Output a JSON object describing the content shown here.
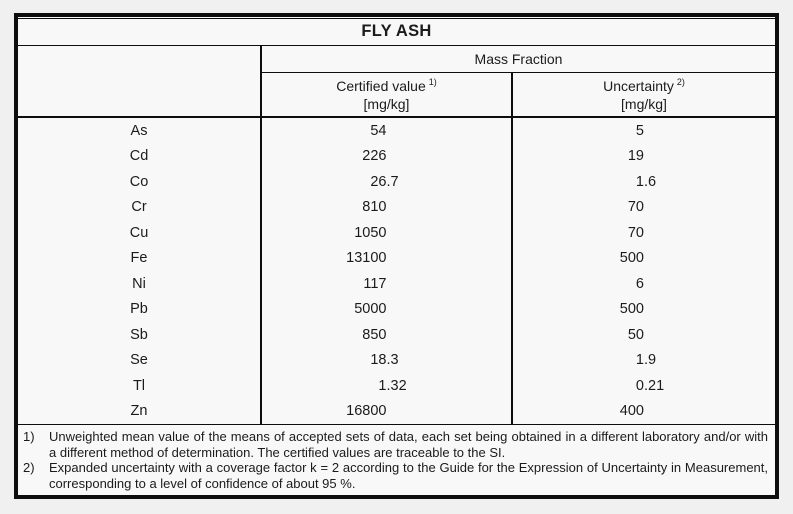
{
  "title": "FLY ASH",
  "columns": {
    "group_label": "Mass Fraction",
    "certified": {
      "label": "Certified value",
      "sup": "1)",
      "unit": "[mg/kg]"
    },
    "uncertainty": {
      "label": "Uncertainty",
      "sup": "2)",
      "unit": "[mg/kg]"
    }
  },
  "rows": [
    {
      "element": "As",
      "certified": {
        "int": "54",
        "frac": ""
      },
      "uncertainty": {
        "int": "5",
        "frac": ""
      }
    },
    {
      "element": "Cd",
      "certified": {
        "int": "226",
        "frac": ""
      },
      "uncertainty": {
        "int": "19",
        "frac": ""
      }
    },
    {
      "element": "Co",
      "certified": {
        "int": "26",
        "frac": ".7"
      },
      "uncertainty": {
        "int": "1",
        "frac": ".6"
      }
    },
    {
      "element": "Cr",
      "certified": {
        "int": "810",
        "frac": ""
      },
      "uncertainty": {
        "int": "70",
        "frac": ""
      }
    },
    {
      "element": "Cu",
      "certified": {
        "int": "1050",
        "frac": ""
      },
      "uncertainty": {
        "int": "70",
        "frac": ""
      }
    },
    {
      "element": "Fe",
      "certified": {
        "int": "13100",
        "frac": ""
      },
      "uncertainty": {
        "int": "500",
        "frac": ""
      }
    },
    {
      "element": "Ni",
      "certified": {
        "int": "117",
        "frac": ""
      },
      "uncertainty": {
        "int": "6",
        "frac": ""
      }
    },
    {
      "element": "Pb",
      "certified": {
        "int": "5000",
        "frac": ""
      },
      "uncertainty": {
        "int": "500",
        "frac": ""
      }
    },
    {
      "element": "Sb",
      "certified": {
        "int": "850",
        "frac": ""
      },
      "uncertainty": {
        "int": "50",
        "frac": ""
      }
    },
    {
      "element": "Se",
      "certified": {
        "int": "18",
        "frac": ".3"
      },
      "uncertainty": {
        "int": "1",
        "frac": ".9"
      }
    },
    {
      "element": "Tl",
      "certified": {
        "int": "1",
        "frac": ".32"
      },
      "uncertainty": {
        "int": "0",
        "frac": ".21"
      }
    },
    {
      "element": "Zn",
      "certified": {
        "int": "16800",
        "frac": ""
      },
      "uncertainty": {
        "int": "400",
        "frac": ""
      }
    }
  ],
  "footnotes": [
    {
      "marker": "1)",
      "text": "Unweighted mean value of the means of accepted sets of data, each set being obtained in a different laboratory and/or with a different method of determination. The certified values are traceable to the SI."
    },
    {
      "marker": "2)",
      "text": "Expanded uncertainty with a coverage factor k = 2 according to the Guide for the Expression of Uncertainty in Measurement, corresponding to a level of confidence of about 95 %."
    }
  ],
  "colors": {
    "page_background": "#f0f0f1",
    "table_background": "#f8f8f8",
    "border": "#0d0d0d",
    "text": "#1b1b1b"
  }
}
